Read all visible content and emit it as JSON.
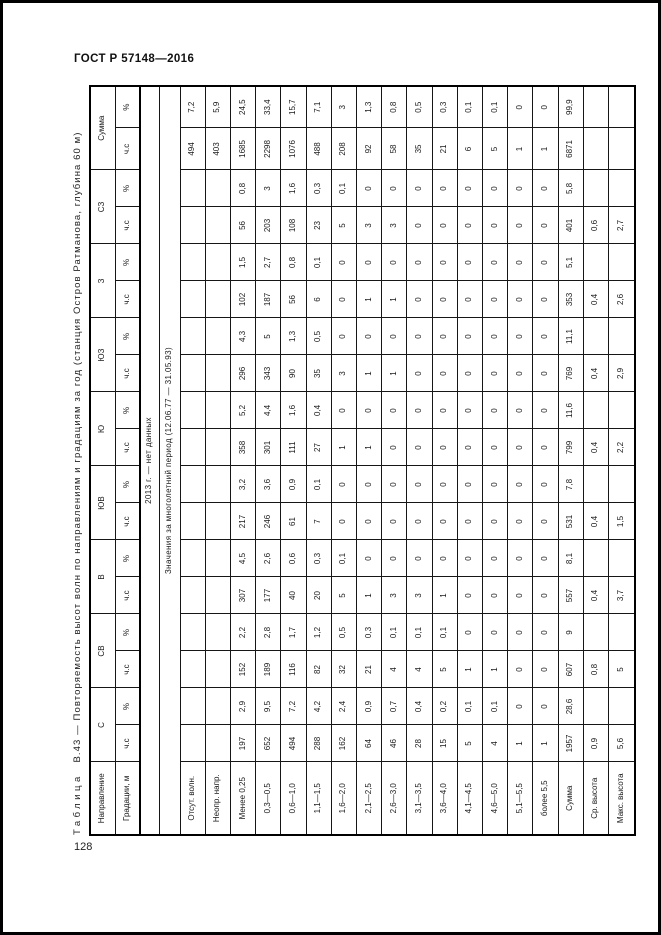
{
  "page": {
    "standard_code": "ГОСТ Р 57148—2016",
    "page_number": "128"
  },
  "colors": {
    "background": "#ffffff",
    "text": "#1a1a1a",
    "border": "#000000"
  },
  "table": {
    "title_word": "Таблица",
    "title_rest": "В.43 — Повторяемость высот волн по направлениям и градациям за год (станция Остров Ратманова, глубина 60 м)",
    "header": {
      "col1_row1": "Направление",
      "col1_row2": "Градации, м",
      "unit_count": "ч.с",
      "unit_percent": "%",
      "groups": [
        "С",
        "СВ",
        "В",
        "ЮВ",
        "Ю",
        "ЮЗ",
        "З",
        "СЗ",
        "Сумма"
      ]
    },
    "notes": [
      "2013 г. — нет данных",
      "Значения за многолетний период (12.06.77 — 31.05.93)"
    ],
    "rows": [
      {
        "label": "Отсут. волн.",
        "cells": [
          "",
          "",
          "",
          "",
          "",
          "",
          "",
          "",
          "",
          "",
          "",
          "",
          "",
          "",
          "",
          "",
          "494",
          "7,2"
        ]
      },
      {
        "label": "Неопр. напр.",
        "cells": [
          "",
          "",
          "",
          "",
          "",
          "",
          "",
          "",
          "",
          "",
          "",
          "",
          "",
          "",
          "",
          "",
          "403",
          "5,9"
        ]
      },
      {
        "label": "Менее 0,25",
        "cells": [
          "197",
          "2,9",
          "152",
          "2,2",
          "307",
          "4,5",
          "217",
          "3,2",
          "358",
          "5,2",
          "296",
          "4,3",
          "102",
          "1,5",
          "56",
          "0,8",
          "1685",
          "24,5"
        ]
      },
      {
        "label": "0,3—0,5",
        "cells": [
          "652",
          "9,5",
          "189",
          "2,8",
          "177",
          "2,6",
          "246",
          "3,6",
          "301",
          "4,4",
          "343",
          "5",
          "187",
          "2,7",
          "203",
          "3",
          "2298",
          "33,4"
        ]
      },
      {
        "label": "0,6—1,0",
        "cells": [
          "494",
          "7,2",
          "116",
          "1,7",
          "40",
          "0,6",
          "61",
          "0,9",
          "111",
          "1,6",
          "90",
          "1,3",
          "56",
          "0,8",
          "108",
          "1,6",
          "1076",
          "15,7"
        ]
      },
      {
        "label": "1,1—1,5",
        "cells": [
          "288",
          "4,2",
          "82",
          "1,2",
          "20",
          "0,3",
          "7",
          "0,1",
          "27",
          "0,4",
          "35",
          "0,5",
          "6",
          "0,1",
          "23",
          "0,3",
          "488",
          "7,1"
        ]
      },
      {
        "label": "1,6—2,0",
        "cells": [
          "162",
          "2,4",
          "32",
          "0,5",
          "5",
          "0,1",
          "0",
          "0",
          "1",
          "0",
          "3",
          "0",
          "0",
          "0",
          "5",
          "0,1",
          "208",
          "3"
        ]
      },
      {
        "label": "2,1—2,5",
        "cells": [
          "64",
          "0,9",
          "21",
          "0,3",
          "1",
          "0",
          "0",
          "0",
          "1",
          "0",
          "1",
          "0",
          "1",
          "0",
          "3",
          "0",
          "92",
          "1,3"
        ]
      },
      {
        "label": "2,6—3,0",
        "cells": [
          "46",
          "0,7",
          "4",
          "0,1",
          "3",
          "0",
          "0",
          "0",
          "0",
          "0",
          "1",
          "0",
          "1",
          "0",
          "3",
          "0",
          "58",
          "0,8"
        ]
      },
      {
        "label": "3,1—3,5",
        "cells": [
          "28",
          "0,4",
          "4",
          "0,1",
          "3",
          "0",
          "0",
          "0",
          "0",
          "0",
          "0",
          "0",
          "0",
          "0",
          "0",
          "0",
          "35",
          "0,5"
        ]
      },
      {
        "label": "3,6—4,0",
        "cells": [
          "15",
          "0,2",
          "5",
          "0,1",
          "1",
          "0",
          "0",
          "0",
          "0",
          "0",
          "0",
          "0",
          "0",
          "0",
          "0",
          "0",
          "21",
          "0,3"
        ]
      },
      {
        "label": "4,1—4,5",
        "cells": [
          "5",
          "0,1",
          "1",
          "0",
          "0",
          "0",
          "0",
          "0",
          "0",
          "0",
          "0",
          "0",
          "0",
          "0",
          "0",
          "0",
          "6",
          "0,1"
        ]
      },
      {
        "label": "4,6—5,0",
        "cells": [
          "4",
          "0,1",
          "1",
          "0",
          "0",
          "0",
          "0",
          "0",
          "0",
          "0",
          "0",
          "0",
          "0",
          "0",
          "0",
          "0",
          "5",
          "0,1"
        ]
      },
      {
        "label": "5,1—5,5",
        "cells": [
          "1",
          "0",
          "0",
          "0",
          "0",
          "0",
          "0",
          "0",
          "0",
          "0",
          "0",
          "0",
          "0",
          "0",
          "0",
          "0",
          "1",
          "0"
        ]
      },
      {
        "label": "более 5,5",
        "cells": [
          "1",
          "0",
          "0",
          "0",
          "0",
          "0",
          "0",
          "0",
          "0",
          "0",
          "0",
          "0",
          "0",
          "0",
          "0",
          "0",
          "1",
          "0"
        ]
      },
      {
        "label": "Сумма",
        "cells": [
          "1957",
          "28,6",
          "607",
          "9",
          "557",
          "8,1",
          "531",
          "7,8",
          "799",
          "11,6",
          "769",
          "11,1",
          "353",
          "5,1",
          "401",
          "5,8",
          "6871",
          "99,9"
        ]
      },
      {
        "label": "Ср. высота",
        "cells": [
          "0,9",
          "",
          "0,8",
          "",
          "0,4",
          "",
          "0,4",
          "",
          "0,4",
          "",
          "0,4",
          "",
          "0,4",
          "",
          "0,6",
          "",
          "",
          ""
        ]
      },
      {
        "label": "Макс. высота",
        "cells": [
          "5,6",
          "",
          "5",
          "",
          "3,7",
          "",
          "1,5",
          "",
          "2,2",
          "",
          "2,9",
          "",
          "2,6",
          "",
          "2,7",
          "",
          "",
          ""
        ]
      }
    ]
  }
}
